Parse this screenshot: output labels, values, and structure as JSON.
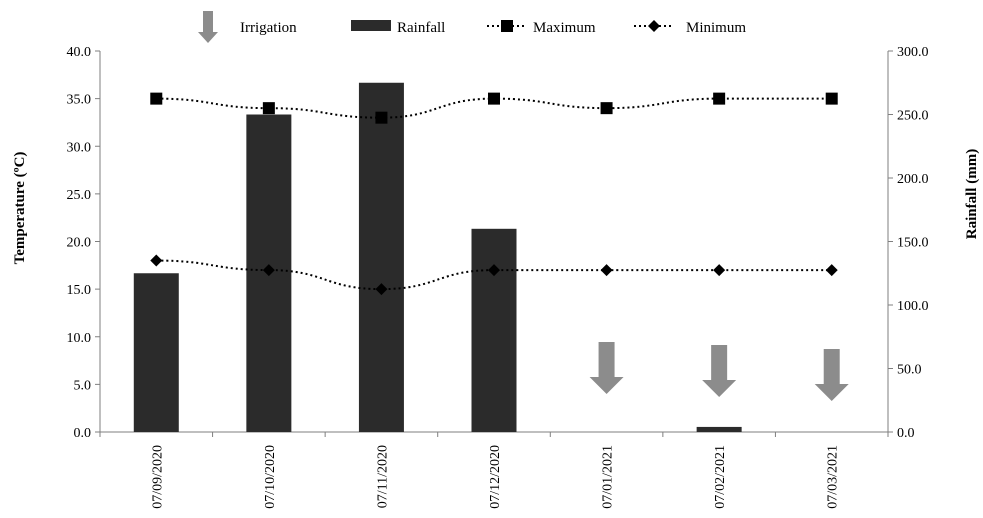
{
  "chart_data": {
    "type": "bar+line",
    "categories": [
      "07/09/2020",
      "07/10/2020",
      "07/11/2020",
      "07/12/2020",
      "07/01/2021",
      "07/02/2021",
      "07/03/2021"
    ],
    "rainfall": {
      "name": "Rainfall",
      "axis": "right",
      "values": [
        125,
        250,
        275,
        160,
        0,
        4,
        0
      ]
    },
    "series": [
      {
        "name": "Maximum",
        "axis": "left",
        "marker": "square",
        "values": [
          35.0,
          34.0,
          33.0,
          35.0,
          34.0,
          35.0,
          35.0
        ]
      },
      {
        "name": "Minimum",
        "axis": "left",
        "marker": "diamond",
        "values": [
          18.0,
          17.0,
          15.0,
          17.0,
          17.0,
          17.0,
          17.0
        ]
      }
    ],
    "irrigation": {
      "name": "Irrigation",
      "categories": [
        "07/01/2021",
        "07/02/2021",
        "07/03/2021"
      ]
    },
    "ylabel": "Temperature (ºC)",
    "y2label": "Rainfall (mm)",
    "ylim": [
      0,
      40
    ],
    "y2lim": [
      0,
      300
    ],
    "yticks": [
      "0.0",
      "5.0",
      "10.0",
      "15.0",
      "20.0",
      "25.0",
      "30.0",
      "35.0",
      "40.0"
    ],
    "y2ticks": [
      "0.0",
      "50.0",
      "100.0",
      "150.0",
      "200.0",
      "250.0",
      "300.0"
    ],
    "legend_position": "top",
    "grid": false,
    "colors": {
      "bar": "#2b2b2b",
      "line": "#000000",
      "arrow": "#8c8c8c"
    }
  }
}
